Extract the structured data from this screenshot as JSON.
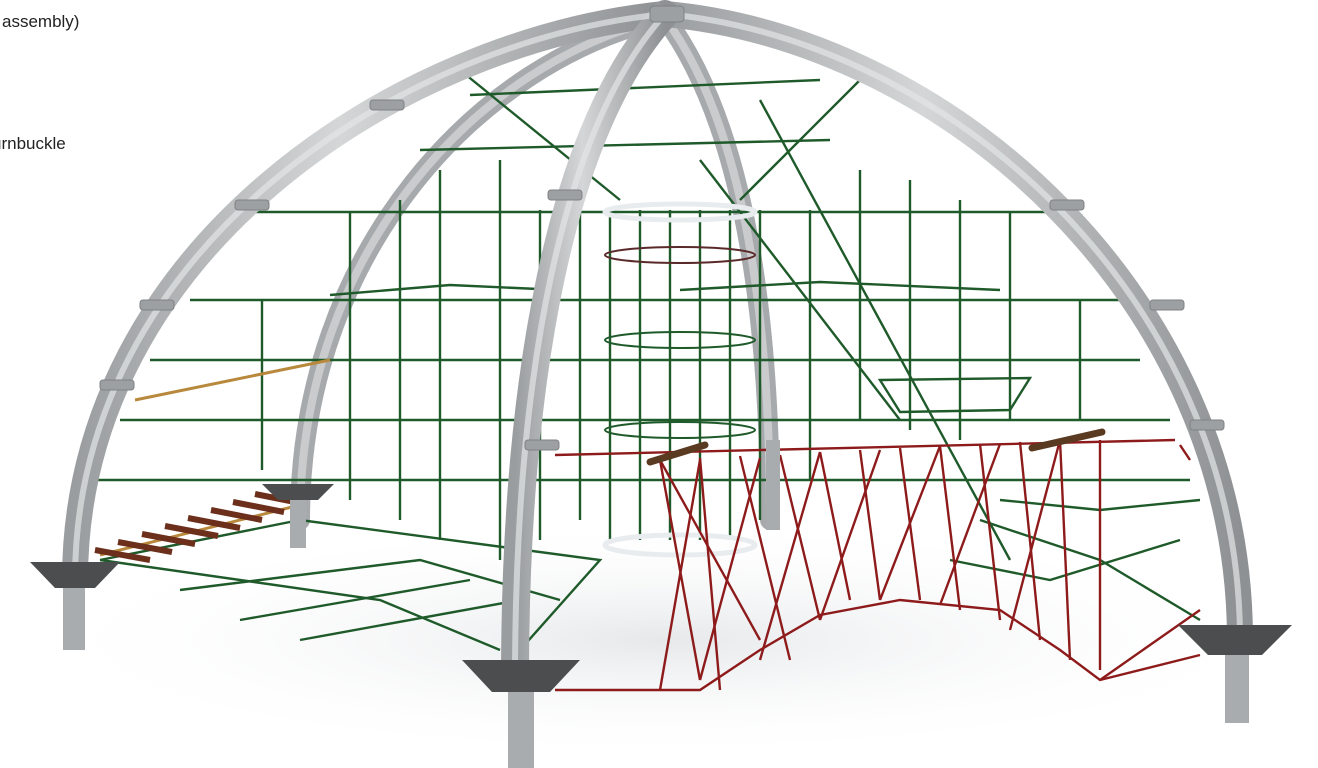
{
  "labels": {
    "assembly": "assembly)",
    "turnbuckle": "urnbuckle"
  },
  "colors": {
    "background": "#ffffff",
    "arch": "#b9bcbe",
    "arch_dark": "#8f9294",
    "net_green": "#1f5a2a",
    "net_red": "#8e1b1b",
    "rope_tan": "#b8893c",
    "ladder_wood": "#7a3a22",
    "foot_cap": "#4c4d4f",
    "ring_white": "#e8ecee"
  },
  "scene": {
    "subject": "dome-climbing-structure-render"
  }
}
